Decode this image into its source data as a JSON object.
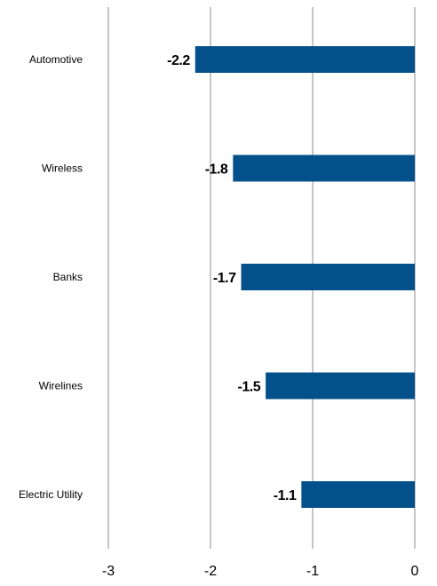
{
  "chart_data": {
    "type": "bar",
    "orientation": "horizontal",
    "title": "",
    "xlabel": "",
    "ylabel": "",
    "categories": [
      "Automotive",
      "Wireless",
      "Banks",
      "Wirelines",
      "Electric Utility"
    ],
    "values": [
      -2.15,
      -1.78,
      -1.7,
      -1.46,
      -1.11
    ],
    "data_labels": [
      "-2.2",
      "-1.8",
      "-1.7",
      "-1.5",
      "-1.1"
    ],
    "xlim": [
      -3,
      0
    ],
    "x_ticks": [
      -3,
      -2,
      -1,
      0
    ],
    "x_tick_labels": [
      "-3",
      "-2",
      "-1",
      "0"
    ],
    "grid": "vertical",
    "legend": "none",
    "bar_color": "#03508a"
  }
}
